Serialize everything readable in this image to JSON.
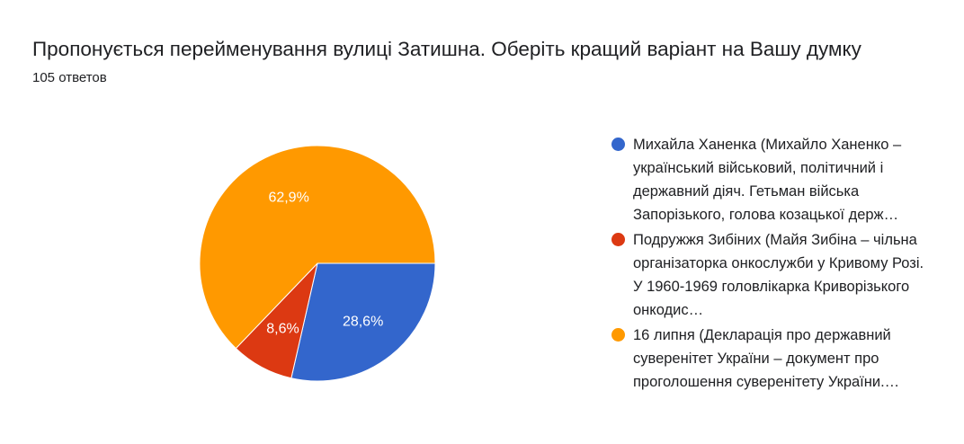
{
  "header": {
    "title": "Пропонується перейменування вулиці  Затишна. Оберіть кращий варіант на Вашу думку",
    "responses": "105 ответов"
  },
  "chart_data": {
    "type": "pie",
    "title": "Пропонується перейменування вулиці  Затишна. Оберіть кращий варіант на Вашу думку",
    "start_angle_deg": 90,
    "direction": "clockwise",
    "legend_position": "right",
    "slices": [
      {
        "name": "Михайла Ханенка (Михайло Ханенко – український військовий, політичний і державний діяч. Гетьман війська Запорізького, голова козацької держ…",
        "value": 28.6,
        "label": "28,6%",
        "color": "#3366cc"
      },
      {
        "name": "Подружжя Зибіних (Майя Зибіна – чільна організаторка онкослужби у Кривому Розі. У 1960-1969 головлікарка Криворізького онкодис…",
        "value": 8.6,
        "label": "8,6%",
        "color": "#dc3912"
      },
      {
        "name": "16 липня (Декларація про державний суверенітет України – документ про проголошення суверенітету України.…",
        "value": 62.9,
        "label": "62,9%",
        "color": "#ff9900"
      }
    ]
  }
}
